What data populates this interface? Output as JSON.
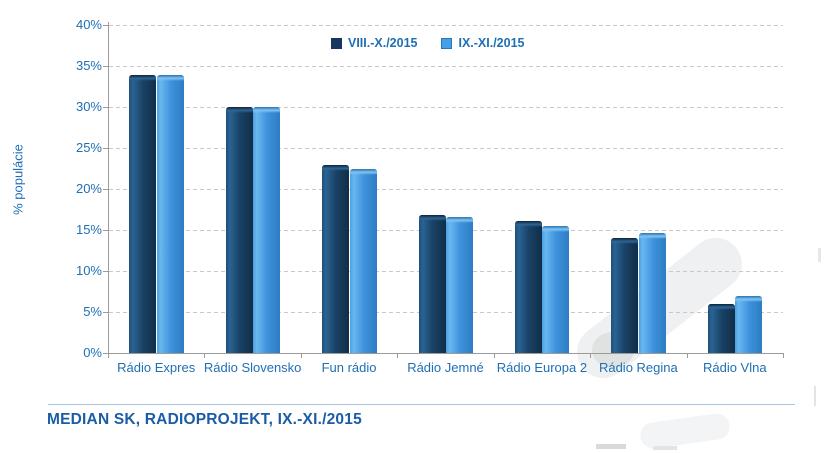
{
  "chart_data": {
    "type": "bar",
    "title": "",
    "xlabel": "",
    "ylabel": "% populácie",
    "categories": [
      "Rádio Expres",
      "Rádio Slovensko",
      "Fun rádio",
      "Rádio Jemné",
      "Rádio Europa 2",
      "Rádio Regina",
      "Rádio Vlna"
    ],
    "series": [
      {
        "name": "VIII.-X./2015",
        "color": "#17375E",
        "values": [
          34.0,
          30.0,
          23.0,
          16.8,
          16.1,
          14.0,
          6.0
        ]
      },
      {
        "name": "IX.-XI./2015",
        "color": "#41A0E8",
        "values": [
          34.0,
          30.0,
          22.5,
          16.6,
          15.5,
          14.6,
          7.0
        ]
      }
    ],
    "ylim": [
      0,
      40
    ],
    "ytick_step": 5,
    "ytick_labels": [
      "0%",
      "5%",
      "10%",
      "15%",
      "20%",
      "25%",
      "30%",
      "35%",
      "40%"
    ],
    "grid": "horizontal-dashed",
    "legend_position": "top-center"
  },
  "footer": {
    "source_text": "MEDIAN SK, RADIOPROJEKT, IX.-XI./2015"
  },
  "colors": {
    "axis_text": "#1F6FB5",
    "axis_line": "#9B9B9B",
    "gridline": "#C8C8C8",
    "footer_text": "#1A5DA6",
    "footer_line": "#A9C7E5",
    "series_dark": "#17375E",
    "series_light": "#41A0E8",
    "background": "#FFFFFF"
  }
}
